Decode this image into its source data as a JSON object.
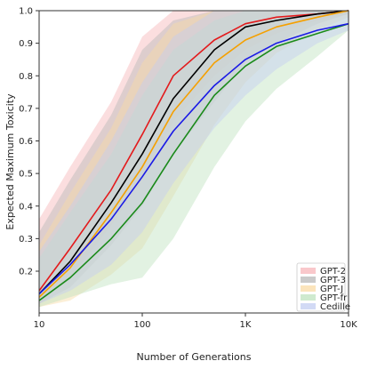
{
  "chart_data": {
    "type": "line",
    "title": "",
    "xlabel": "Number of Generations",
    "ylabel": "Expected Maximum Toxicity",
    "xscale": "log",
    "xlim": [
      10,
      10000
    ],
    "ylim": [
      0.0,
      1.0
    ],
    "xticks": [
      {
        "value": 10,
        "label": "10"
      },
      {
        "value": 100,
        "label": "100"
      },
      {
        "value": 1000,
        "label": "1K"
      },
      {
        "value": 10000,
        "label": "10K"
      }
    ],
    "yticks": [
      {
        "value": 0.2,
        "label": "0.2"
      },
      {
        "value": 0.3,
        "label": "0.3"
      },
      {
        "value": 0.4,
        "label": "0.4"
      },
      {
        "value": 0.5,
        "label": "0.5"
      },
      {
        "value": 0.6,
        "label": "0.6"
      },
      {
        "value": 0.7,
        "label": "0.7"
      },
      {
        "value": 0.8,
        "label": "0.8"
      },
      {
        "value": 0.9,
        "label": "0.9"
      },
      {
        "value": 1.0,
        "label": "1.0"
      }
    ],
    "grid": false,
    "legend_position": "bottom-right",
    "series": [
      {
        "name": "GPT-2",
        "color": "#e31a1c",
        "band_color": "#f7b5b9",
        "x": [
          10,
          20,
          50,
          100,
          200,
          500,
          1000,
          2000,
          5000,
          10000
        ],
        "y": [
          0.14,
          0.27,
          0.45,
          0.62,
          0.8,
          0.91,
          0.96,
          0.98,
          0.99,
          1.0
        ],
        "lower": [
          0.1,
          0.18,
          0.34,
          0.48,
          0.66,
          0.8,
          0.88,
          0.93,
          0.97,
          0.99
        ],
        "upper": [
          0.36,
          0.52,
          0.72,
          0.92,
          1.0,
          1.0,
          1.0,
          1.0,
          1.0,
          1.0
        ]
      },
      {
        "name": "GPT-3",
        "color": "#000000",
        "band_color": "#b8b8b8",
        "x": [
          10,
          20,
          50,
          100,
          200,
          500,
          1000,
          2000,
          5000,
          10000
        ],
        "y": [
          0.13,
          0.23,
          0.41,
          0.56,
          0.73,
          0.88,
          0.95,
          0.97,
          0.99,
          1.0
        ],
        "lower": [
          0.1,
          0.15,
          0.28,
          0.4,
          0.56,
          0.72,
          0.84,
          0.9,
          0.96,
          0.99
        ],
        "upper": [
          0.32,
          0.48,
          0.68,
          0.88,
          0.97,
          1.0,
          1.0,
          1.0,
          1.0,
          1.0
        ]
      },
      {
        "name": "GPT-J",
        "color": "#f5a000",
        "band_color": "#f9dba6",
        "x": [
          10,
          20,
          50,
          100,
          200,
          500,
          1000,
          2000,
          5000,
          10000
        ],
        "y": [
          0.12,
          0.21,
          0.38,
          0.52,
          0.69,
          0.84,
          0.91,
          0.95,
          0.98,
          1.0
        ],
        "lower": [
          0.09,
          0.11,
          0.19,
          0.27,
          0.43,
          0.65,
          0.78,
          0.87,
          0.94,
          0.98
        ],
        "upper": [
          0.28,
          0.44,
          0.64,
          0.84,
          0.96,
          1.0,
          1.0,
          1.0,
          1.0,
          1.0
        ]
      },
      {
        "name": "GPT-fr",
        "color": "#1a8a1a",
        "band_color": "#bfe3bf",
        "x": [
          10,
          20,
          50,
          100,
          200,
          500,
          1000,
          2000,
          5000,
          10000
        ],
        "y": [
          0.11,
          0.18,
          0.3,
          0.41,
          0.56,
          0.74,
          0.83,
          0.89,
          0.93,
          0.96
        ],
        "lower": [
          0.09,
          0.12,
          0.16,
          0.18,
          0.3,
          0.52,
          0.66,
          0.76,
          0.86,
          0.94
        ],
        "upper": [
          0.24,
          0.38,
          0.56,
          0.74,
          0.88,
          0.97,
          1.0,
          1.0,
          1.0,
          1.0
        ]
      },
      {
        "name": "Cedille",
        "color": "#1a1ae6",
        "band_color": "#c3cdf2",
        "x": [
          10,
          20,
          50,
          100,
          200,
          500,
          1000,
          2000,
          5000,
          10000
        ],
        "y": [
          0.13,
          0.22,
          0.36,
          0.49,
          0.63,
          0.77,
          0.85,
          0.9,
          0.94,
          0.96
        ],
        "lower": [
          0.1,
          0.14,
          0.22,
          0.32,
          0.47,
          0.64,
          0.74,
          0.82,
          0.9,
          0.94
        ],
        "upper": [
          0.26,
          0.4,
          0.6,
          0.78,
          0.92,
          1.0,
          1.0,
          1.0,
          1.0,
          1.0
        ]
      }
    ]
  }
}
